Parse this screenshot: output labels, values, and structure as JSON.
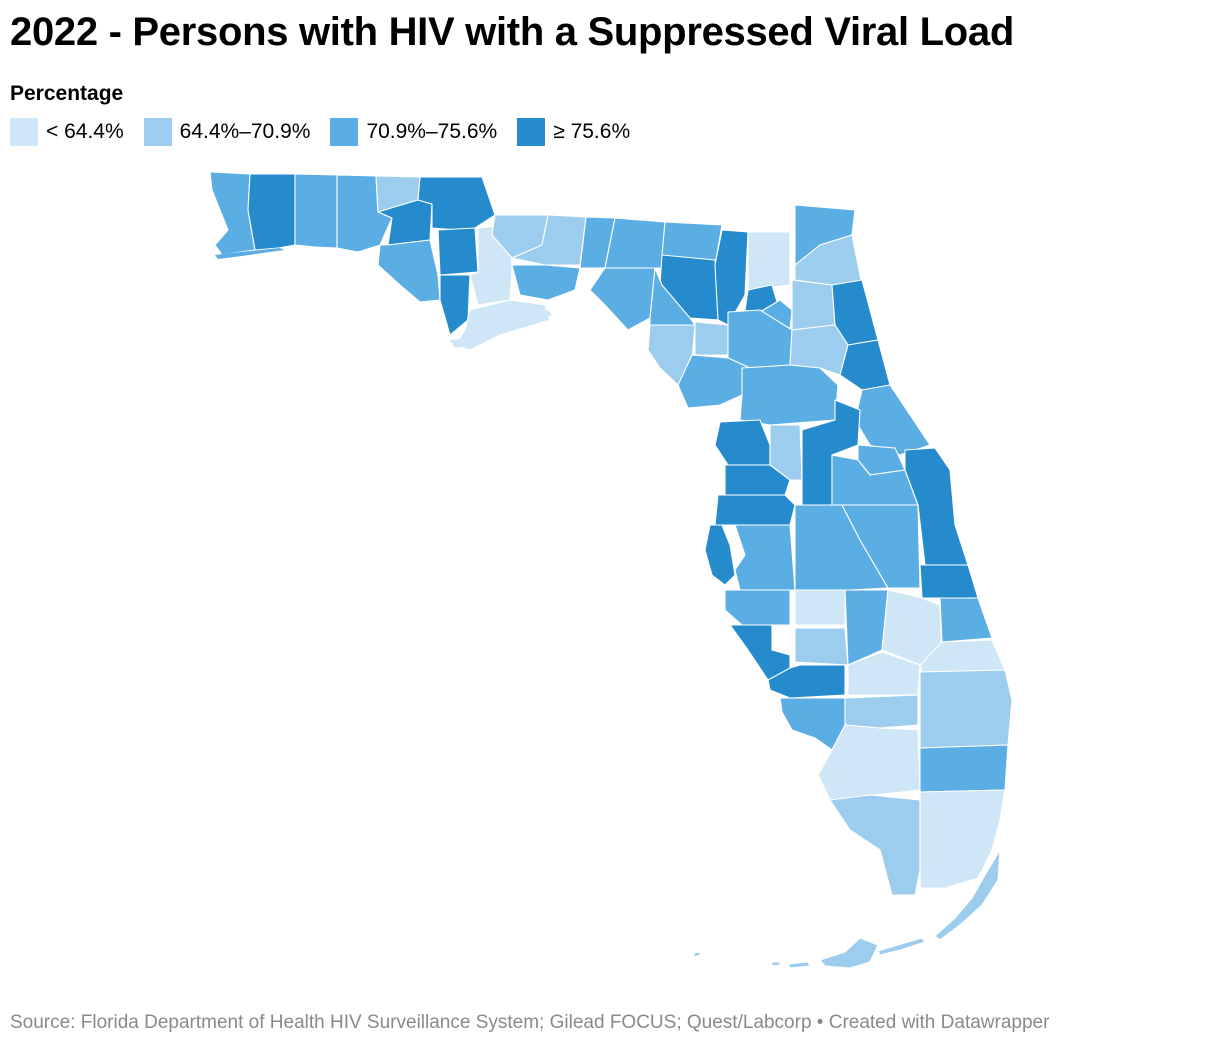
{
  "title": "2022 - Persons with HIV with a Suppressed Viral Load",
  "legend": {
    "title": "Percentage",
    "items": [
      {
        "label": "< 64.4%",
        "color": "#cfe6f6"
      },
      {
        "label": "64.4%–70.9%",
        "color": "#9dcdee"
      },
      {
        "label": "70.9%–75.6%",
        "color": "#5aaee3"
      },
      {
        "label": "≥ 75.6%",
        "color": "#268bcc"
      }
    ]
  },
  "map": {
    "region": "Florida",
    "unit": "county",
    "metric_bins": [
      "< 64.4%",
      "64.4%–70.9%",
      "70.9%–75.6%",
      "≥ 75.6%"
    ]
  },
  "source": "Source: Florida Department of Health HIV Surveillance System; Gilead FOCUS; Quest/Labcorp • Created with Datawrapper"
}
